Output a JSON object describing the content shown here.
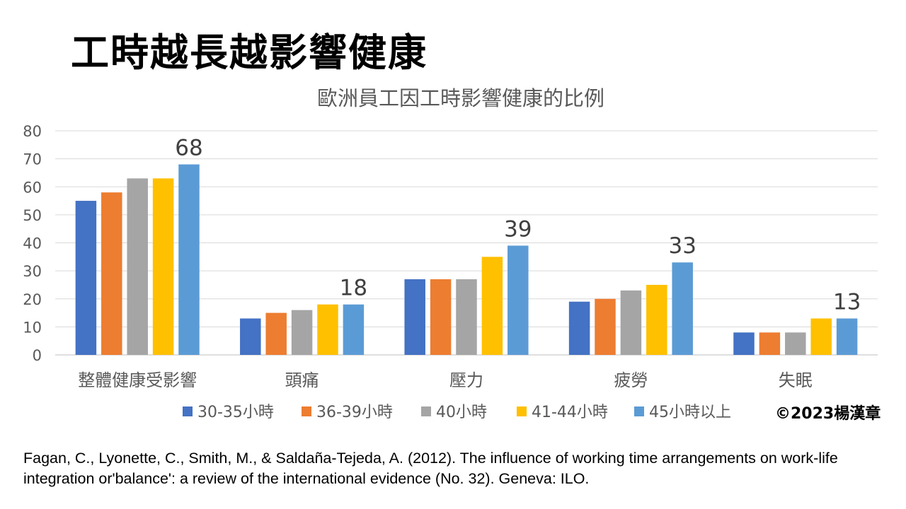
{
  "slide": {
    "title": "工時越長越影響健康",
    "credit": "©2023楊漢章",
    "citation": "Fagan, C., Lyonette, C., Smith, M., & Saldaña-Tejeda, A. (2012). The influence of working time arrangements on work-life integration or'balance': a review of the international evidence (No. 32). Geneva: ILO."
  },
  "chart_data": {
    "type": "bar",
    "title": "歐洲員工因工時影響健康的比例",
    "xlabel": "",
    "ylabel": "",
    "ylim": [
      0,
      80
    ],
    "yticks": [
      0,
      10,
      20,
      30,
      40,
      50,
      60,
      70,
      80
    ],
    "grid": true,
    "legend_position": "bottom",
    "categories": [
      "整體健康受影響",
      "頭痛",
      "壓力",
      "疲勞",
      "失眠"
    ],
    "series": [
      {
        "name": "30-35小時",
        "color": "#4472C4",
        "values": [
          55,
          13,
          27,
          19,
          8
        ]
      },
      {
        "name": "36-39小時",
        "color": "#ED7D31",
        "values": [
          58,
          15,
          27,
          20,
          8
        ]
      },
      {
        "name": "40小時",
        "color": "#A5A5A5",
        "values": [
          63,
          16,
          27,
          23,
          8
        ]
      },
      {
        "name": "41-44小時",
        "color": "#FFC000",
        "values": [
          63,
          18,
          35,
          25,
          13
        ]
      },
      {
        "name": "45小時以上",
        "color": "#5B9BD5",
        "values": [
          68,
          18,
          39,
          33,
          13
        ]
      }
    ],
    "data_labels": [
      {
        "series": 4,
        "category": 0,
        "text": "68"
      },
      {
        "series": 4,
        "category": 1,
        "text": "18"
      },
      {
        "series": 4,
        "category": 2,
        "text": "39"
      },
      {
        "series": 4,
        "category": 3,
        "text": "33"
      },
      {
        "series": 4,
        "category": 4,
        "text": "13"
      }
    ]
  }
}
